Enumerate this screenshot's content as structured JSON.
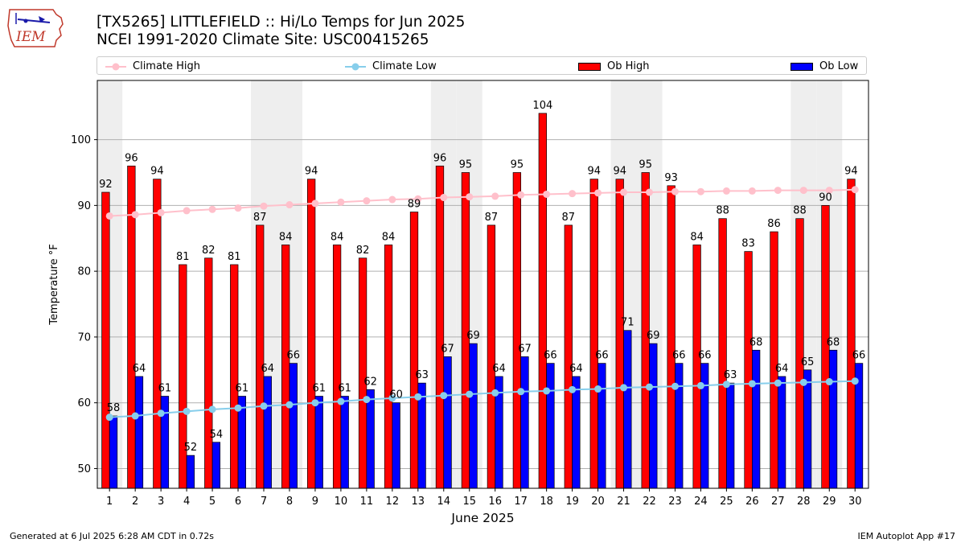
{
  "title_line1": "[TX5265] LITTLEFIELD :: Hi/Lo Temps for Jun 2025",
  "title_line2": "NCEI 1991-2020 Climate Site: USC00415265",
  "logo_text": "IEM",
  "footer_left": "Generated at 6 Jul 2025 6:28 AM CDT in 0.72s",
  "footer_right": "IEM Autoplot App #17",
  "legend": {
    "climate_high": "Climate High",
    "climate_low": "Climate Low",
    "ob_high": "Ob High",
    "ob_low": "Ob Low"
  },
  "colors": {
    "ob_high": "#ff0000",
    "ob_low": "#0000ff",
    "climate_high": "#ffc0cb",
    "climate_low": "#87ceeb",
    "weekend_band": "#eeeeee"
  },
  "chart_data": {
    "type": "bar",
    "xlabel": "June 2025",
    "ylabel": "Temperature °F",
    "ylim": [
      47,
      109
    ],
    "yticks": [
      50,
      60,
      70,
      80,
      90,
      100
    ],
    "grid": "horizontal",
    "legend_position": "top",
    "shaded_weekend_days": [
      1,
      7,
      8,
      14,
      15,
      21,
      22,
      28,
      29
    ],
    "categories": [
      "1",
      "2",
      "3",
      "4",
      "5",
      "6",
      "7",
      "8",
      "9",
      "10",
      "11",
      "12",
      "13",
      "14",
      "15",
      "16",
      "17",
      "18",
      "19",
      "20",
      "21",
      "22",
      "23",
      "24",
      "25",
      "26",
      "27",
      "28",
      "29",
      "30"
    ],
    "series": [
      {
        "name": "Ob High",
        "type": "bar",
        "values": [
          92,
          96,
          94,
          81,
          82,
          81,
          87,
          84,
          94,
          84,
          82,
          84,
          89,
          96,
          95,
          87,
          95,
          104,
          87,
          94,
          94,
          95,
          93,
          84,
          88,
          83,
          86,
          88,
          90,
          94
        ]
      },
      {
        "name": "Ob Low",
        "type": "bar",
        "values": [
          58,
          64,
          61,
          52,
          54,
          61,
          64,
          66,
          61,
          61,
          62,
          60,
          63,
          67,
          69,
          64,
          67,
          66,
          64,
          66,
          71,
          69,
          66,
          66,
          63,
          68,
          64,
          65,
          68,
          66
        ]
      },
      {
        "name": "Climate High",
        "type": "line",
        "values": [
          88.4,
          88.6,
          88.9,
          89.2,
          89.4,
          89.6,
          89.9,
          90.1,
          90.3,
          90.5,
          90.7,
          90.9,
          91.0,
          91.2,
          91.3,
          91.4,
          91.6,
          91.7,
          91.8,
          91.9,
          92.0,
          92.0,
          92.1,
          92.1,
          92.2,
          92.2,
          92.3,
          92.3,
          92.3,
          92.4
        ]
      },
      {
        "name": "Climate Low",
        "type": "line",
        "values": [
          57.8,
          58.0,
          58.4,
          58.7,
          59.0,
          59.2,
          59.5,
          59.7,
          60.0,
          60.2,
          60.5,
          60.7,
          60.9,
          61.1,
          61.3,
          61.5,
          61.7,
          61.8,
          62.0,
          62.1,
          62.3,
          62.4,
          62.5,
          62.6,
          62.8,
          62.9,
          63.0,
          63.1,
          63.2,
          63.3
        ]
      }
    ]
  }
}
